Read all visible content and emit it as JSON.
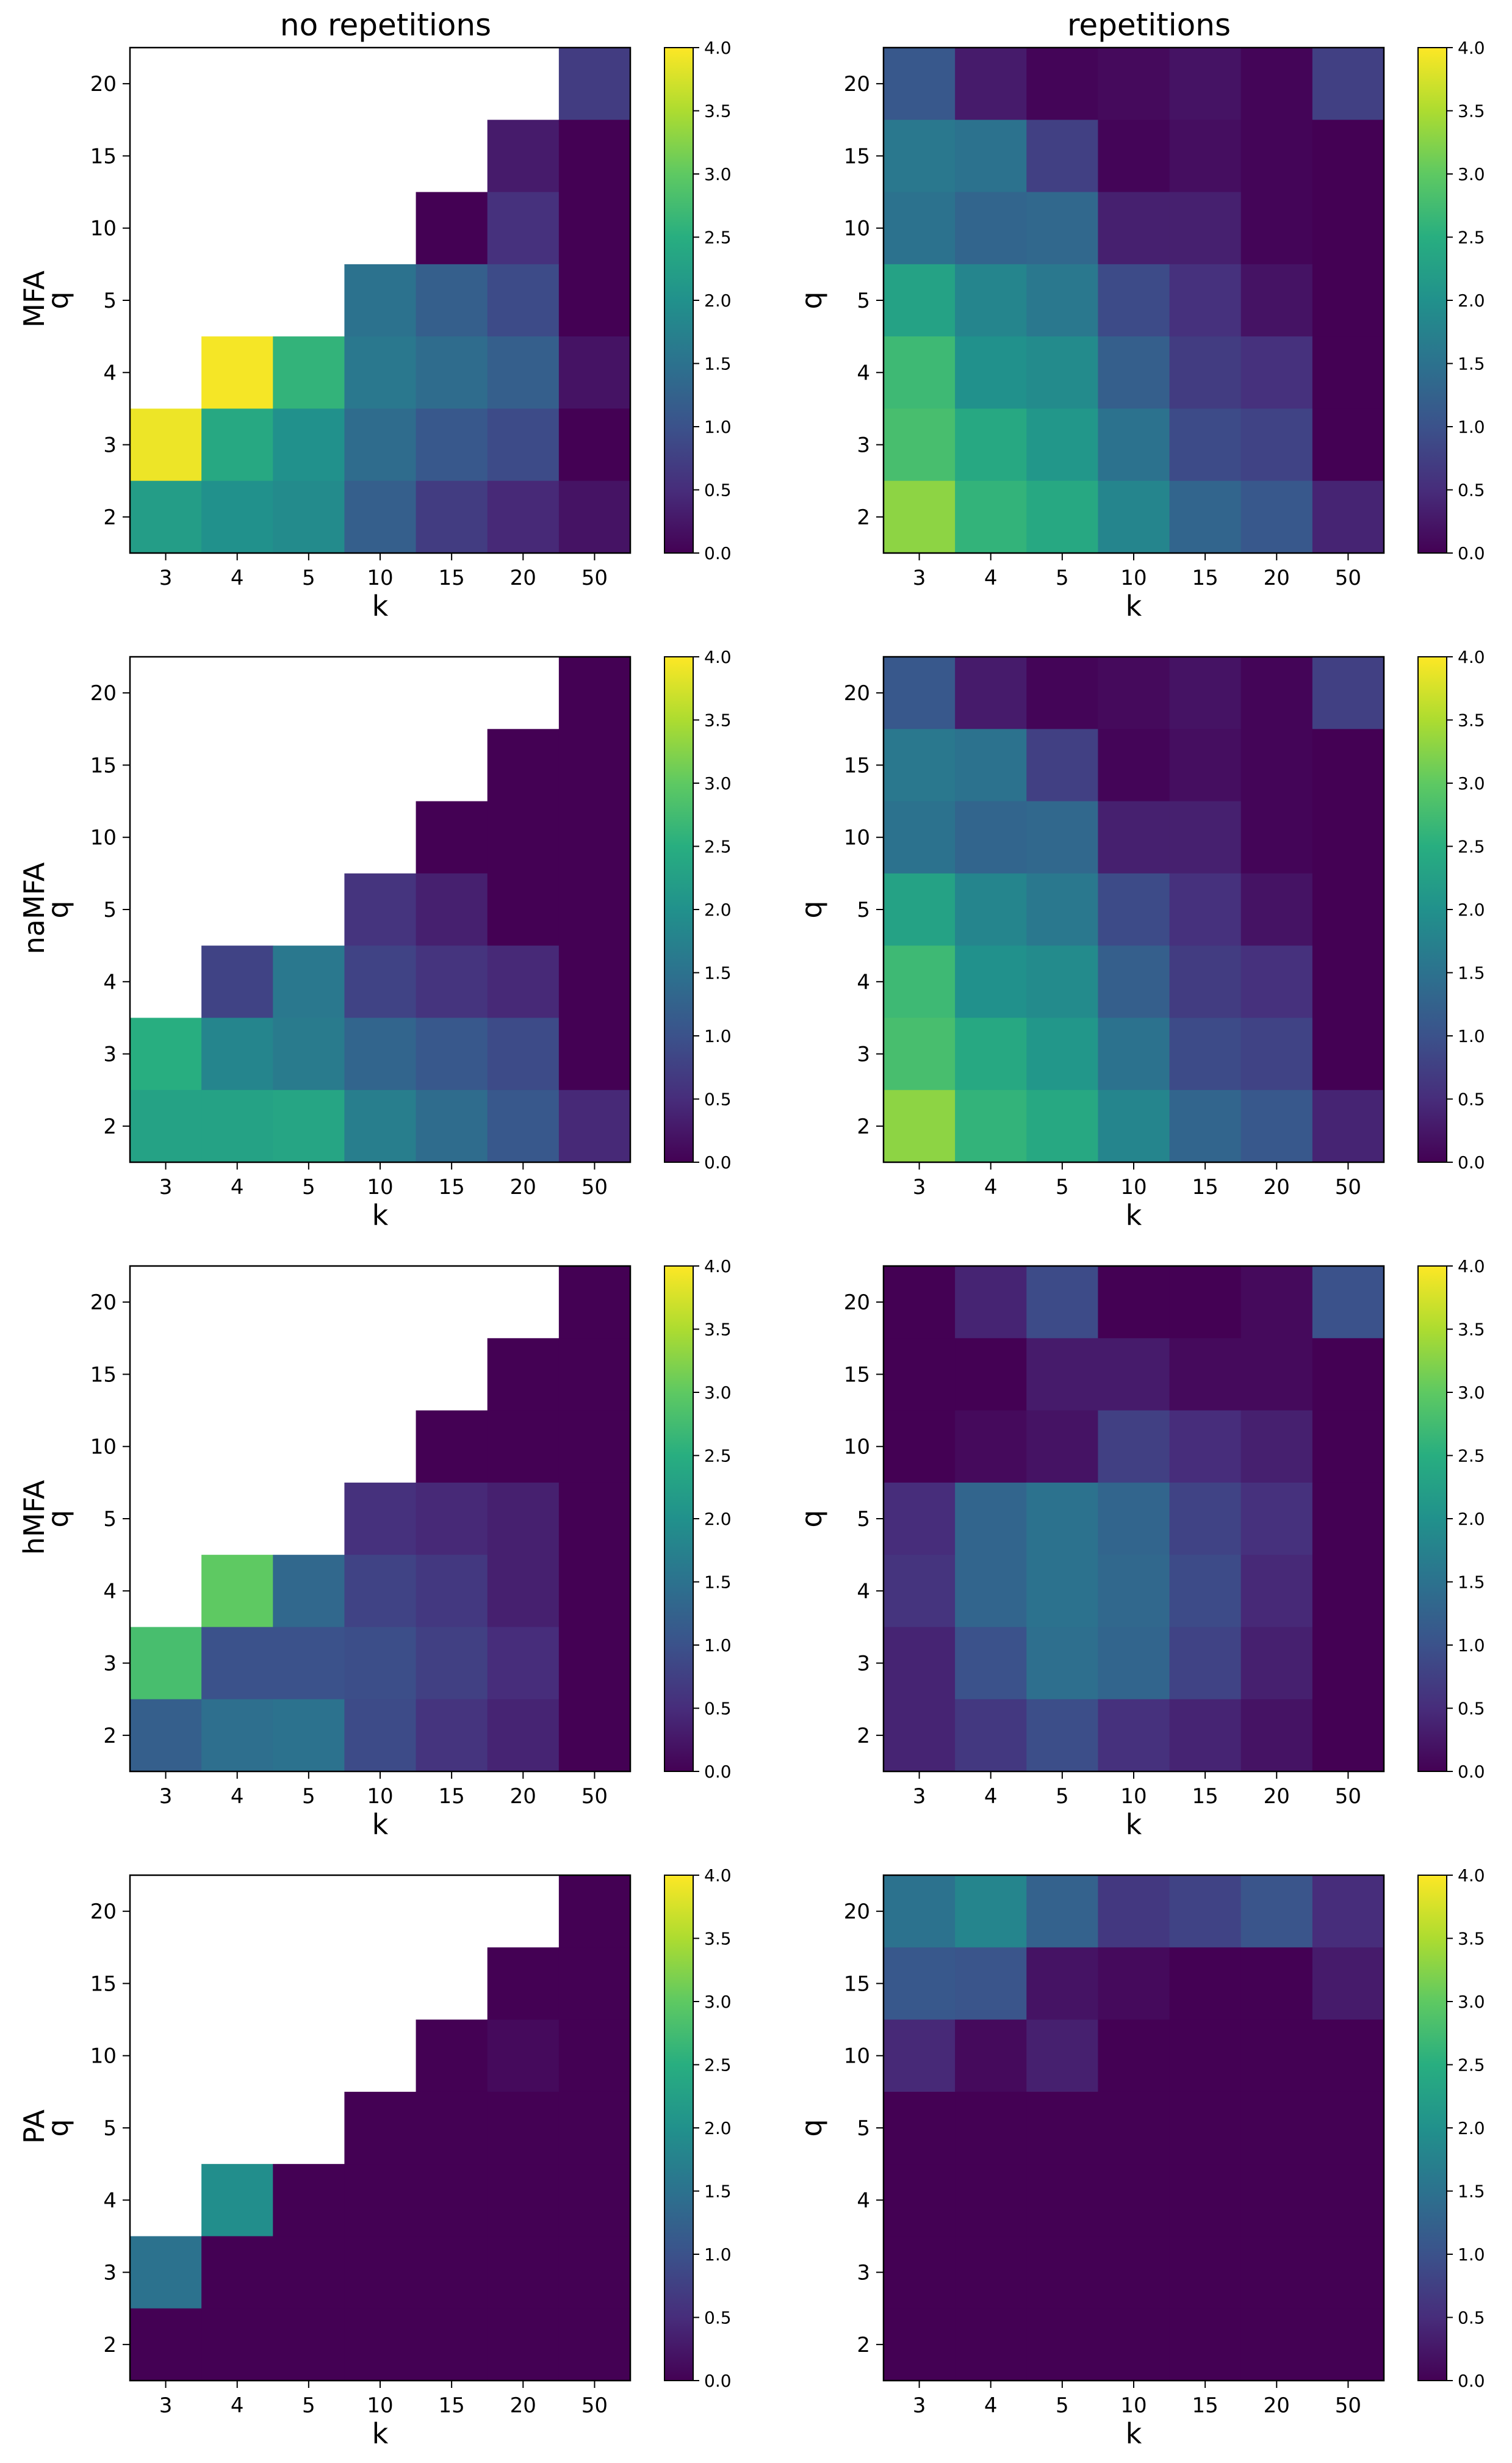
{
  "figure": {
    "column_titles": [
      "no repetitions",
      "repetitions"
    ],
    "row_titles": [
      "MFA",
      "naMFA",
      "hMFA",
      "PA"
    ]
  },
  "chart_data": {
    "type": "heatmap",
    "xlabel": "k",
    "ylabel": "q",
    "x_ticks": [
      "3",
      "4",
      "5",
      "10",
      "15",
      "20",
      "50"
    ],
    "y_ticks": [
      "2",
      "3",
      "4",
      "5",
      "10",
      "15",
      "20"
    ],
    "colorbar": {
      "colormap": "viridis",
      "range": [
        0.0,
        4.0
      ],
      "ticks": [
        "0.0",
        "0.5",
        "1.0",
        "1.5",
        "2.0",
        "2.5",
        "3.0",
        "3.5",
        "4.0"
      ]
    },
    "note": "values rows ordered q = 20, 15, 10, 5, 4, 3, 2 (top to bottom); columns k = 3, 4, 5, 10, 15, 20, 50; null = empty cell",
    "panels": [
      {
        "method": "MFA",
        "condition": "no repetitions",
        "values": [
          [
            null,
            null,
            null,
            null,
            null,
            null,
            0.7
          ],
          [
            null,
            null,
            null,
            null,
            null,
            0.3,
            0.0
          ],
          [
            null,
            null,
            null,
            null,
            0.0,
            0.55,
            0.0
          ],
          [
            null,
            null,
            null,
            1.5,
            1.2,
            0.9,
            0.0
          ],
          [
            null,
            3.95,
            2.6,
            1.6,
            1.4,
            1.2,
            0.2
          ],
          [
            3.9,
            2.4,
            2.0,
            1.4,
            1.1,
            0.9,
            0.0
          ],
          [
            2.2,
            2.0,
            1.9,
            1.2,
            0.7,
            0.45,
            0.2
          ]
        ]
      },
      {
        "method": "MFA",
        "condition": "repetitions",
        "values": [
          [
            1.1,
            0.3,
            0.05,
            0.1,
            0.2,
            0.05,
            0.75
          ],
          [
            1.6,
            1.5,
            0.75,
            0.05,
            0.15,
            0.05,
            0.0
          ],
          [
            1.5,
            1.3,
            1.35,
            0.35,
            0.35,
            0.05,
            0.0
          ],
          [
            2.3,
            1.8,
            1.6,
            0.9,
            0.55,
            0.2,
            0.0
          ],
          [
            2.7,
            2.0,
            1.9,
            1.2,
            0.7,
            0.55,
            0.0
          ],
          [
            2.8,
            2.4,
            2.1,
            1.5,
            0.9,
            0.8,
            0.0
          ],
          [
            3.3,
            2.6,
            2.4,
            1.8,
            1.3,
            1.1,
            0.4
          ]
        ]
      },
      {
        "method": "naMFA",
        "condition": "no repetitions",
        "values": [
          [
            null,
            null,
            null,
            null,
            null,
            null,
            0.0
          ],
          [
            null,
            null,
            null,
            null,
            null,
            0.0,
            0.0
          ],
          [
            null,
            null,
            null,
            null,
            0.0,
            0.0,
            0.0
          ],
          [
            null,
            null,
            null,
            0.6,
            0.35,
            0.0,
            0.0
          ],
          [
            null,
            0.8,
            1.6,
            0.8,
            0.6,
            0.45,
            0.0
          ],
          [
            2.5,
            1.8,
            1.65,
            1.3,
            1.1,
            0.9,
            0.0
          ],
          [
            2.3,
            2.3,
            2.35,
            1.7,
            1.4,
            1.1,
            0.45
          ]
        ]
      },
      {
        "method": "naMFA",
        "condition": "repetitions",
        "values": [
          [
            1.1,
            0.3,
            0.05,
            0.1,
            0.2,
            0.05,
            0.75
          ],
          [
            1.6,
            1.5,
            0.75,
            0.05,
            0.15,
            0.05,
            0.0
          ],
          [
            1.5,
            1.3,
            1.35,
            0.35,
            0.35,
            0.05,
            0.0
          ],
          [
            2.3,
            1.8,
            1.6,
            0.9,
            0.55,
            0.2,
            0.0
          ],
          [
            2.7,
            2.0,
            1.9,
            1.2,
            0.7,
            0.55,
            0.0
          ],
          [
            2.8,
            2.4,
            2.1,
            1.5,
            0.9,
            0.8,
            0.0
          ],
          [
            3.3,
            2.6,
            2.4,
            1.8,
            1.3,
            1.1,
            0.4
          ]
        ]
      },
      {
        "method": "hMFA",
        "condition": "no repetitions",
        "values": [
          [
            null,
            null,
            null,
            null,
            null,
            null,
            0.0
          ],
          [
            null,
            null,
            null,
            null,
            null,
            0.0,
            0.0
          ],
          [
            null,
            null,
            null,
            null,
            0.0,
            0.0,
            0.0
          ],
          [
            null,
            null,
            null,
            0.55,
            0.45,
            0.35,
            0.0
          ],
          [
            null,
            3.0,
            1.35,
            0.8,
            0.65,
            0.35,
            0.0
          ],
          [
            2.8,
            1.0,
            1.0,
            0.95,
            0.75,
            0.5,
            0.0
          ],
          [
            1.2,
            1.45,
            1.5,
            0.9,
            0.6,
            0.4,
            0.0
          ]
        ]
      },
      {
        "method": "hMFA",
        "condition": "repetitions",
        "values": [
          [
            0.0,
            0.4,
            0.9,
            0.0,
            0.0,
            0.1,
            1.0
          ],
          [
            0.0,
            0.0,
            0.3,
            0.3,
            0.1,
            0.1,
            0.0
          ],
          [
            0.0,
            0.1,
            0.2,
            0.75,
            0.5,
            0.35,
            0.0
          ],
          [
            0.5,
            1.3,
            1.5,
            1.3,
            0.8,
            0.55,
            0.0
          ],
          [
            0.6,
            1.3,
            1.5,
            1.35,
            0.9,
            0.45,
            0.0
          ],
          [
            0.4,
            1.0,
            1.45,
            1.3,
            0.8,
            0.35,
            0.0
          ],
          [
            0.4,
            0.65,
            0.95,
            0.55,
            0.4,
            0.2,
            0.0
          ]
        ]
      },
      {
        "method": "PA",
        "condition": "no repetitions",
        "values": [
          [
            null,
            null,
            null,
            null,
            null,
            null,
            0.0
          ],
          [
            null,
            null,
            null,
            null,
            null,
            0.0,
            0.0
          ],
          [
            null,
            null,
            null,
            null,
            0.0,
            0.1,
            0.0
          ],
          [
            null,
            null,
            null,
            0.0,
            0.0,
            0.0,
            0.0
          ],
          [
            null,
            1.95,
            0.0,
            0.0,
            0.0,
            0.0,
            0.0
          ],
          [
            1.5,
            0.0,
            0.0,
            0.0,
            0.0,
            0.0,
            0.0
          ],
          [
            0.0,
            0.0,
            0.0,
            0.0,
            0.0,
            0.0,
            0.0
          ]
        ]
      },
      {
        "method": "PA",
        "condition": "repetitions",
        "values": [
          [
            1.5,
            1.8,
            1.25,
            0.65,
            0.8,
            1.05,
            0.5
          ],
          [
            1.1,
            1.05,
            0.2,
            0.1,
            0.0,
            0.0,
            0.3
          ],
          [
            0.45,
            0.1,
            0.35,
            0.0,
            0.0,
            0.0,
            0.0
          ],
          [
            0.0,
            0.0,
            0.0,
            0.0,
            0.0,
            0.0,
            0.0
          ],
          [
            0.0,
            0.0,
            0.0,
            0.0,
            0.0,
            0.0,
            0.0
          ],
          [
            0.0,
            0.0,
            0.0,
            0.0,
            0.0,
            0.0,
            0.0
          ],
          [
            0.0,
            0.0,
            0.0,
            0.0,
            0.0,
            0.0,
            0.0
          ]
        ]
      }
    ]
  }
}
